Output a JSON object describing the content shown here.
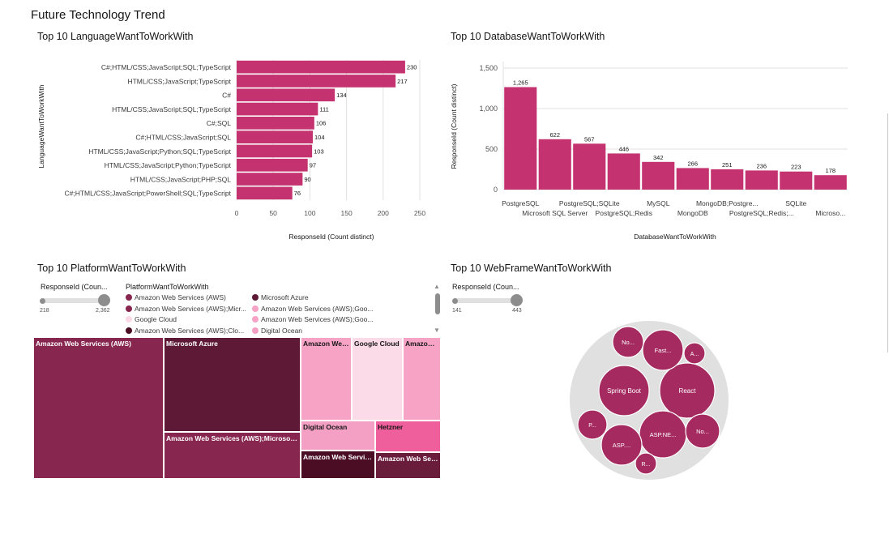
{
  "page": {
    "title": "Future Technology Trend"
  },
  "chart_data": [
    {
      "id": "language",
      "type": "bar",
      "orientation": "horizontal",
      "title": "Top 10 LanguageWantToWorkWith",
      "xlabel": "ResponseId (Count distinct)",
      "ylabel": "LanguageWantToWorkWith",
      "xlim": [
        0,
        250
      ],
      "xticks": [
        "0",
        "50",
        "100",
        "150",
        "200",
        "250"
      ],
      "xtick_values": [
        0,
        50,
        100,
        150,
        200,
        250
      ],
      "categories": [
        "C#;HTML/CSS;JavaScript;SQL;TypeScript",
        "HTML/CSS;JavaScript;TypeScript",
        "C#",
        "HTML/CSS;JavaScript;SQL;TypeScript",
        "C#;SQL",
        "C#;HTML/CSS;JavaScript;SQL",
        "HTML/CSS;JavaScript;Python;SQL;TypeScript",
        "HTML/CSS;JavaScript;Python;TypeScript",
        "HTML/CSS;JavaScript;PHP;SQL",
        "C#;HTML/CSS;JavaScript;PowerShell;SQL;TypeScript"
      ],
      "values": [
        230,
        217,
        134,
        111,
        106,
        104,
        103,
        97,
        90,
        76
      ],
      "grid": true
    },
    {
      "id": "database",
      "type": "bar",
      "orientation": "vertical",
      "title": "Top 10 DatabaseWantToWorkWith",
      "xlabel": "DatabaseWantToWorkWith",
      "ylabel": "ResponseId (Count distinct)",
      "ylim": [
        0,
        1500
      ],
      "yticks": [
        "0",
        "500",
        "1,000",
        "1,500"
      ],
      "ytick_values": [
        0,
        500,
        1000,
        1500
      ],
      "categories": [
        "PostgreSQL",
        "Microsoft SQL Server",
        "PostgreSQL;SQLite",
        "PostgreSQL;Redis",
        "MySQL",
        "MongoDB",
        "MongoDB;Postgre...",
        "PostgreSQL;Redis;...",
        "SQLite",
        "Microso..."
      ],
      "values": [
        1265,
        622,
        567,
        446,
        342,
        266,
        251,
        236,
        223,
        178
      ],
      "value_labels": [
        "1,265",
        "622",
        "567",
        "446",
        "342",
        "266",
        "251",
        "236",
        "223",
        "178"
      ],
      "grid": true
    },
    {
      "id": "platform",
      "type": "treemap",
      "title": "Top 10 PlatformWantToWorkWith",
      "size_legend": {
        "label": "ResponseId (Coun...",
        "min": "218",
        "max": "2,362"
      },
      "legend_title": "PlatformWantToWorkWith",
      "legend": [
        {
          "label": "Amazon Web Services (AWS)",
          "color": "#87264f"
        },
        {
          "label": "Microsoft Azure",
          "color": "#5e1936"
        },
        {
          "label": "Amazon Web Services (AWS);Micr...",
          "color": "#87264f"
        },
        {
          "label": "Amazon Web Services (AWS);Goo...",
          "color": "#f6a3c6"
        },
        {
          "label": "Google Cloud",
          "color": "#fbd9e7"
        },
        {
          "label": "Amazon Web Services (AWS);Goo...",
          "color": "#f6a3c6"
        },
        {
          "label": "Amazon Web Services (AWS);Clo...",
          "color": "#4a0d24"
        },
        {
          "label": "Digital Ocean",
          "color": "#f49fc4"
        }
      ],
      "cells": [
        {
          "label": "Amazon Web Services (AWS)",
          "color": "#87264f",
          "text_color": "#ffffff"
        },
        {
          "label": "Microsoft Azure",
          "color": "#5e1936",
          "text_color": "#ffffff"
        },
        {
          "label": "Amazon Web Services (AWS);Microsoft A...",
          "color": "#87264f",
          "text_color": "#ffffff"
        },
        {
          "label": "Amazon Web...",
          "color": "#f6a3c6",
          "text_color": "#161616"
        },
        {
          "label": "Google Cloud",
          "color": "#fbdbe8",
          "text_color": "#161616"
        },
        {
          "label": "Amazon ...",
          "color": "#f6a3c6",
          "text_color": "#161616"
        },
        {
          "label": "Digital Ocean",
          "color": "#f49fc4",
          "text_color": "#161616"
        },
        {
          "label": "Hetzner",
          "color": "#ee5f9c",
          "text_color": "#161616"
        },
        {
          "label": "Amazon Web Servic...",
          "color": "#4a0d24",
          "text_color": "#ffffff"
        },
        {
          "label": "Amazon Web Ser...",
          "color": "#6a1d3b",
          "text_color": "#ffffff"
        }
      ]
    },
    {
      "id": "webframe",
      "type": "bubble",
      "title": "Top 10 WebFrameWantToWorkWith",
      "size_legend": {
        "label": "ResponseId (Coun...",
        "min": "141",
        "max": "443"
      },
      "labels": [
        "Spring Boot",
        "React",
        "Fast...",
        "No...",
        "A...",
        "ASP.NE...",
        "No...",
        "ASP....",
        "P...",
        "R..."
      ],
      "color": "#a52a60",
      "group_color": "#e0e0e0"
    }
  ]
}
